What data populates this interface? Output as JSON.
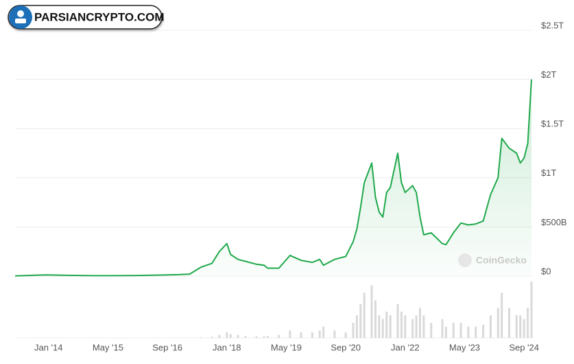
{
  "brand": "PARSIANCRYPTO.COM",
  "chart_data": {
    "type": "area",
    "watermark": "CoinGecko",
    "color": "#1ea84a",
    "grid": true,
    "x": [
      "2013-04",
      "2013-12",
      "2014-06",
      "2015-01",
      "2015-06",
      "2016-01",
      "2016-06",
      "2016-12",
      "2017-03",
      "2017-06",
      "2017-09",
      "2017-11",
      "2018-01",
      "2018-02",
      "2018-04",
      "2018-06",
      "2018-09",
      "2018-11",
      "2018-12",
      "2019-03",
      "2019-06",
      "2019-09",
      "2019-12",
      "2020-02",
      "2020-03",
      "2020-06",
      "2020-09",
      "2020-11",
      "2020-12",
      "2021-01",
      "2021-02",
      "2021-04",
      "2021-05",
      "2021-06",
      "2021-07",
      "2021-08",
      "2021-09",
      "2021-11",
      "2021-12",
      "2022-01",
      "2022-03",
      "2022-04",
      "2022-05",
      "2022-06",
      "2022-08",
      "2022-11",
      "2022-12",
      "2023-02",
      "2023-04",
      "2023-06",
      "2023-08",
      "2023-10",
      "2023-12",
      "2024-02",
      "2024-03",
      "2024-05",
      "2024-07",
      "2024-08",
      "2024-09",
      "2024-10",
      "2024-11"
    ],
    "values": [
      1500000000.0,
      12000000000.0,
      8000000000.0,
      4000000000.0,
      4000000000.0,
      6000000000.0,
      10000000000.0,
      15000000000.0,
      20000000000.0,
      90000000000.0,
      130000000000.0,
      250000000000.0,
      330000000000.0,
      220000000000.0,
      170000000000.0,
      150000000000.0,
      120000000000.0,
      110000000000.0,
      80000000000.0,
      80000000000.0,
      210000000000.0,
      160000000000.0,
      140000000000.0,
      170000000000.0,
      110000000000.0,
      170000000000.0,
      200000000000.0,
      350000000000.0,
      480000000000.0,
      700000000000.0,
      950000000000.0,
      1150000000000.0,
      800000000000.0,
      650000000000.0,
      600000000000.0,
      850000000000.0,
      900000000000.0,
      1250000000000.0,
      950000000000.0,
      850000000000.0,
      920000000000.0,
      850000000000.0,
      600000000000.0,
      420000000000.0,
      440000000000.0,
      330000000000.0,
      320000000000.0,
      440000000000.0,
      540000000000.0,
      520000000000.0,
      530000000000.0,
      560000000000.0,
      830000000000.0,
      1000000000000.0,
      1400000000000.0,
      1300000000000.0,
      1250000000000.0,
      1150000000000.0,
      1200000000000.0,
      1350000000000.0,
      2000000000000.0
    ],
    "volume": [
      50000000.0,
      100000000.0,
      50000000.0,
      30000000.0,
      30000000.0,
      50000000.0,
      100000000.0,
      200000000.0,
      500000000.0,
      2000000000.0,
      3000000000.0,
      8000000000.0,
      15000000000.0,
      10000000000.0,
      8000000000.0,
      5000000000.0,
      4000000000.0,
      4000000000.0,
      5000000000.0,
      8000000000.0,
      20000000000.0,
      15000000000.0,
      15000000000.0,
      20000000000.0,
      30000000000.0,
      20000000000.0,
      15000000000.0,
      40000000000.0,
      60000000000.0,
      90000000000.0,
      120000000000.0,
      140000000000.0,
      100000000000.0,
      60000000000.0,
      50000000000.0,
      70000000000.0,
      60000000000.0,
      90000000000.0,
      70000000000.0,
      60000000000.0,
      50000000000.0,
      60000000000.0,
      80000000000.0,
      60000000000.0,
      40000000000.0,
      50000000000.0,
      30000000000.0,
      40000000000.0,
      40000000000.0,
      30000000000.0,
      30000000000.0,
      35000000000.0,
      60000000000.0,
      80000000000.0,
      120000000000.0,
      80000000000.0,
      60000000000.0,
      60000000000.0,
      50000000000.0,
      80000000000.0,
      150000000000.0
    ],
    "xlim": [
      "2013-04",
      "2024-11"
    ],
    "xticks": [
      {
        "value": "2014-01",
        "label": "Jan '14"
      },
      {
        "value": "2015-05",
        "label": "May '15"
      },
      {
        "value": "2016-09",
        "label": "Sep '16"
      },
      {
        "value": "2018-01",
        "label": "Jan '18"
      },
      {
        "value": "2019-05",
        "label": "May '19"
      },
      {
        "value": "2020-09",
        "label": "Sep '20"
      },
      {
        "value": "2022-01",
        "label": "Jan '22"
      },
      {
        "value": "2023-05",
        "label": "May '23"
      },
      {
        "value": "2024-09",
        "label": "Sep '24"
      }
    ],
    "ylim": [
      0,
      2500000000000
    ],
    "yticks": [
      {
        "value": 0,
        "label": "$0"
      },
      {
        "value": 500000000000,
        "label": "$500B"
      },
      {
        "value": 1000000000000,
        "label": "$1T"
      },
      {
        "value": 1500000000000,
        "label": "$1.5T"
      },
      {
        "value": 2000000000000,
        "label": "$2T"
      },
      {
        "value": 2500000000000,
        "label": "$2.5T"
      }
    ]
  }
}
